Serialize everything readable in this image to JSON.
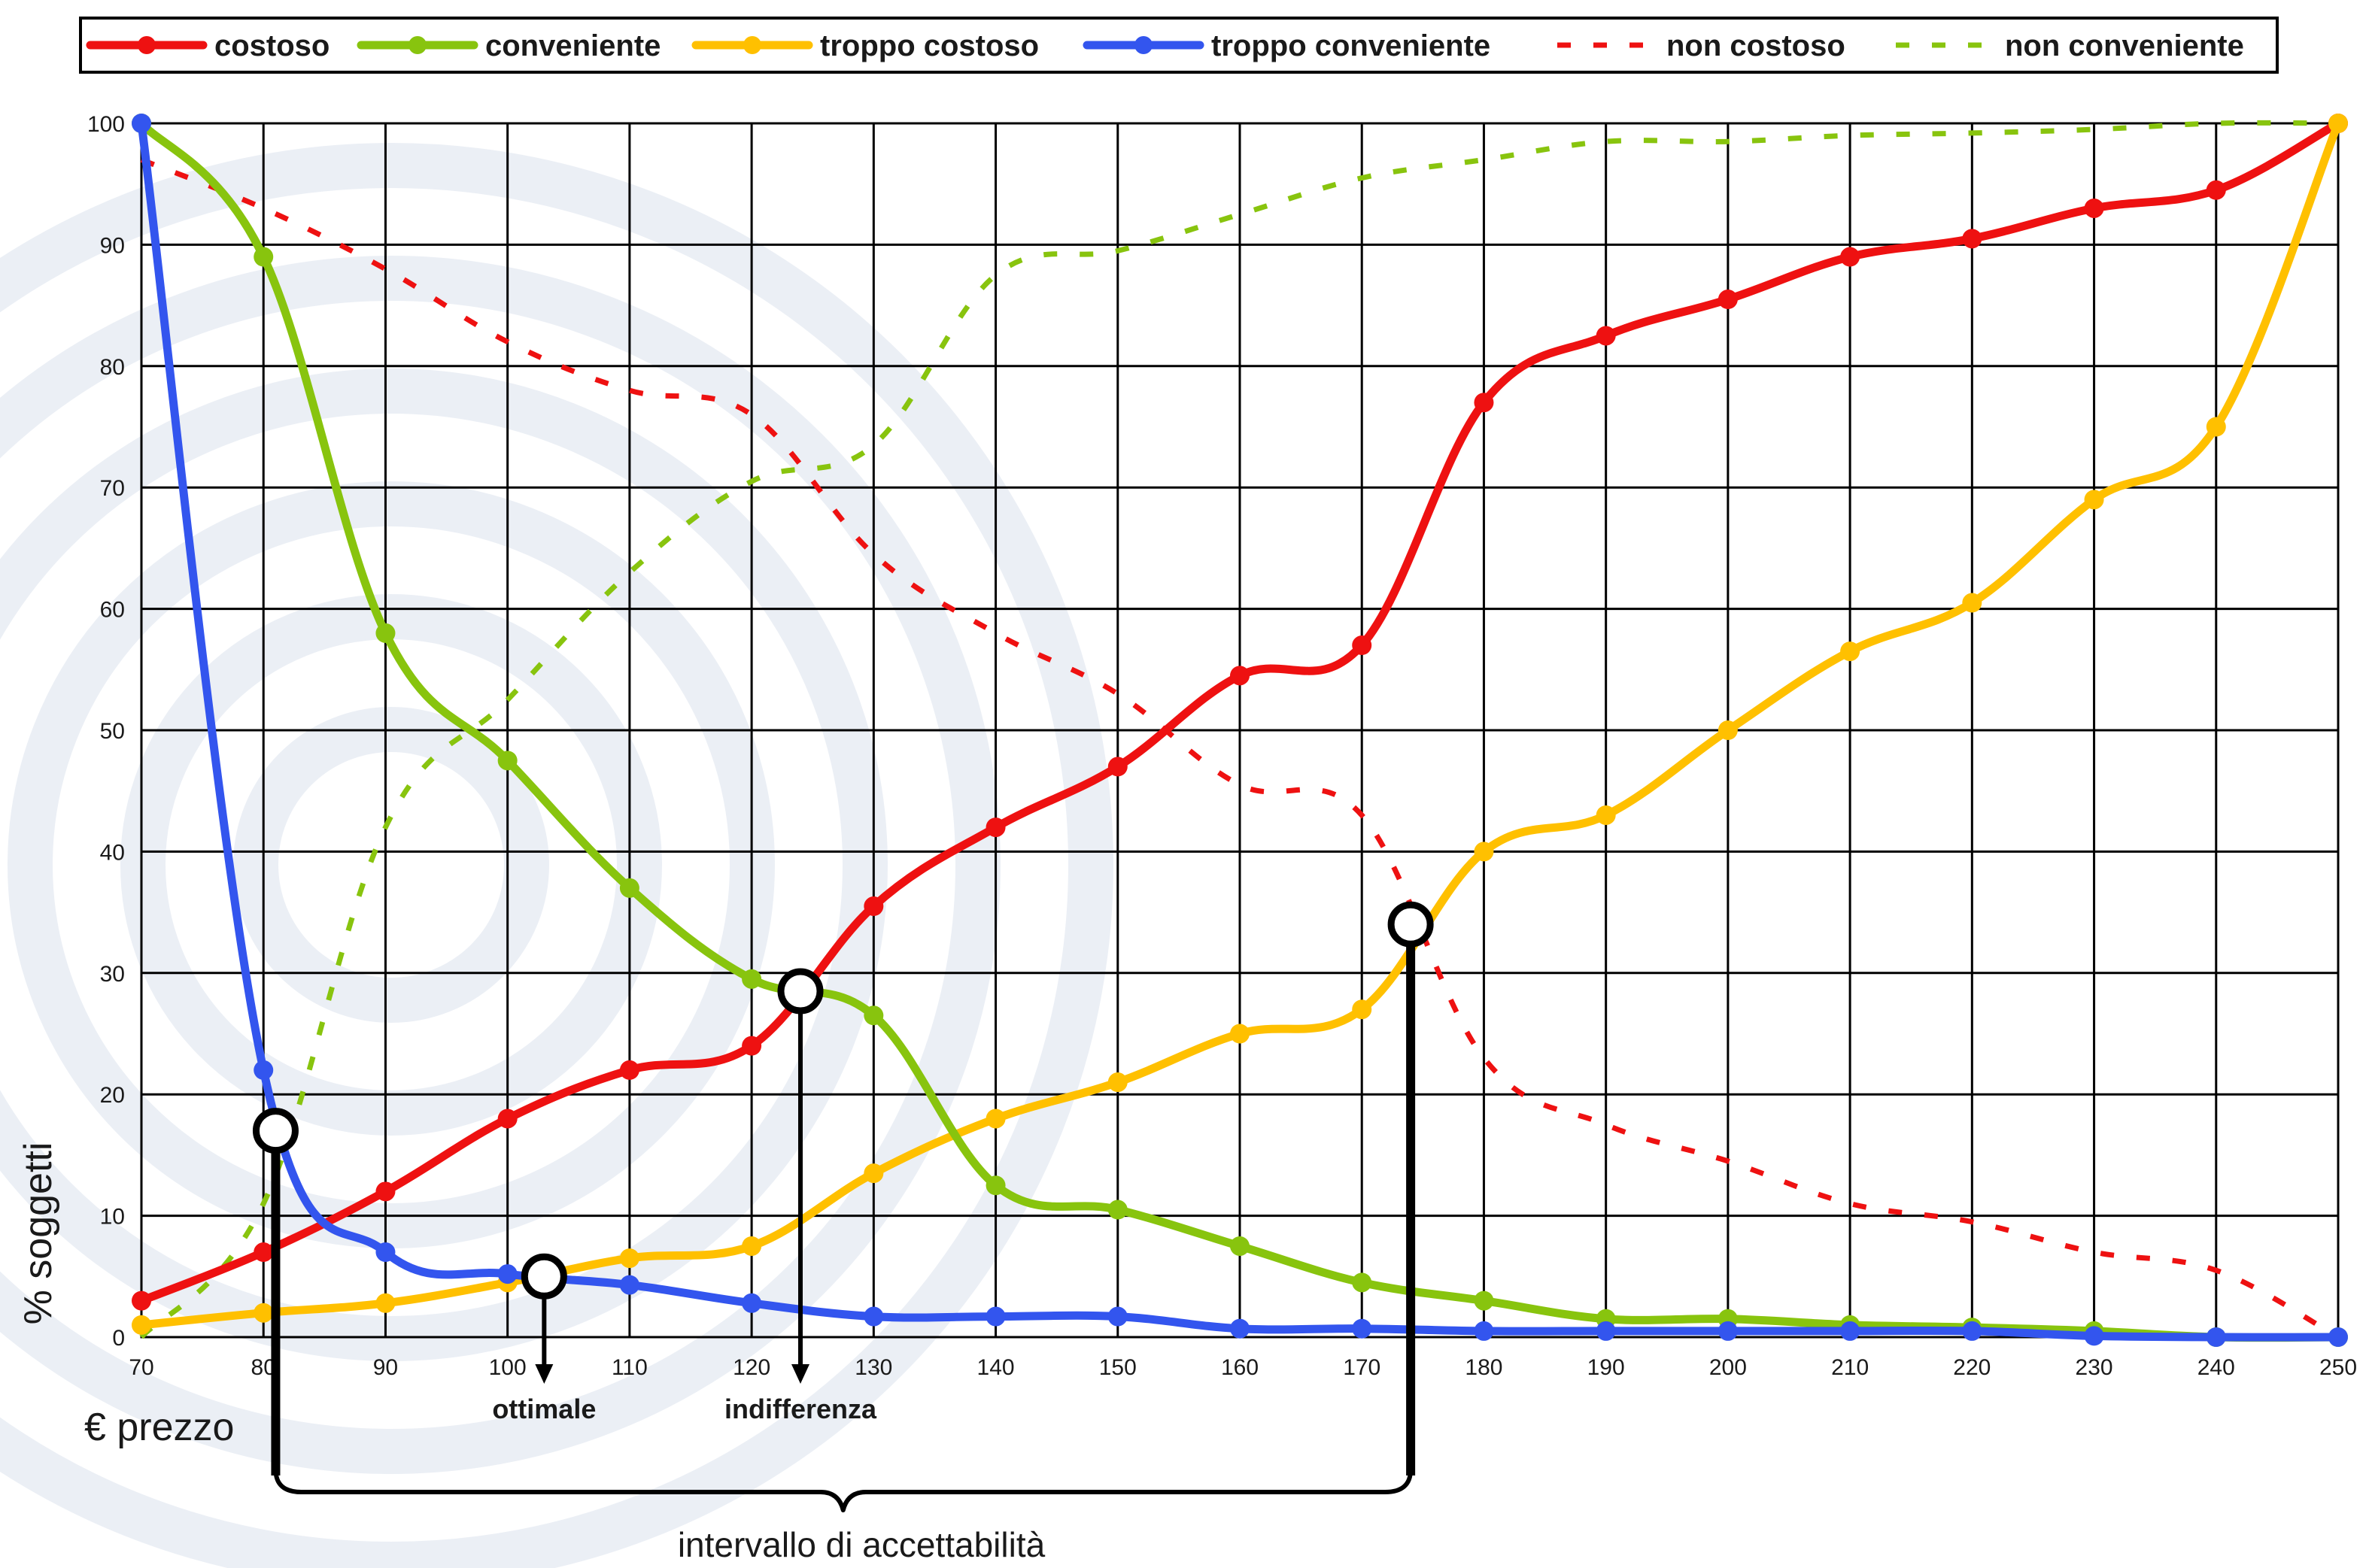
{
  "chart_data": {
    "type": "line",
    "xlabel": "€ prezzo",
    "ylabel": "% soggetti",
    "x": [
      70,
      80,
      90,
      100,
      110,
      120,
      130,
      140,
      150,
      160,
      170,
      180,
      190,
      200,
      210,
      220,
      230,
      240,
      250
    ],
    "xlim": [
      70,
      250
    ],
    "ylim": [
      0,
      100
    ],
    "xticks": [
      70,
      80,
      90,
      100,
      110,
      120,
      130,
      140,
      150,
      160,
      170,
      180,
      190,
      200,
      210,
      220,
      230,
      240,
      250
    ],
    "yticks": [
      0,
      10,
      20,
      30,
      40,
      50,
      60,
      70,
      80,
      90,
      100
    ],
    "grid": true,
    "legend_position": "top",
    "series": [
      {
        "name": "costoso",
        "color": "#ee1111",
        "style": "solid",
        "markers": true,
        "values": [
          3,
          7,
          12,
          18,
          22,
          24,
          35.5,
          42,
          47,
          54.5,
          57,
          77,
          82.5,
          85.5,
          89,
          90.5,
          93,
          94.5,
          100
        ]
      },
      {
        "name": "conveniente",
        "color": "#88c40e",
        "style": "solid",
        "markers": true,
        "values": [
          100,
          89,
          58,
          47.5,
          37,
          29.5,
          26.5,
          12.5,
          10.5,
          7.5,
          4.5,
          3,
          1.5,
          1.5,
          1,
          0.8,
          0.5,
          0,
          0
        ]
      },
      {
        "name": "troppo costoso",
        "color": "#ffc000",
        "style": "solid",
        "markers": true,
        "values": [
          1,
          2,
          2.8,
          4.5,
          6.5,
          7.5,
          13.5,
          18,
          21,
          25,
          27,
          40,
          43,
          50,
          56.5,
          60.5,
          69,
          75,
          100
        ]
      },
      {
        "name": "troppo conveniente",
        "color": "#3355ee",
        "style": "solid",
        "markers": true,
        "values": [
          100,
          22,
          7,
          5.2,
          4.3,
          2.8,
          1.7,
          1.7,
          1.7,
          0.7,
          0.7,
          0.5,
          0.5,
          0.5,
          0.5,
          0.5,
          0.1,
          0,
          0
        ]
      },
      {
        "name": "non costoso",
        "color": "#ee1111",
        "style": "dashed",
        "markers": false,
        "values": [
          97,
          93,
          88,
          82,
          78,
          76,
          64.5,
          58,
          53,
          45.5,
          43,
          23,
          17.5,
          14.5,
          11,
          9.5,
          7,
          5.5,
          0
        ]
      },
      {
        "name": "non conveniente",
        "color": "#88c40e",
        "style": "dashed",
        "markers": false,
        "values": [
          0,
          11,
          42,
          52.5,
          63,
          70.5,
          73.5,
          87.5,
          89.5,
          92.5,
          95.5,
          97,
          98.5,
          98.5,
          99,
          99.2,
          99.5,
          100,
          100
        ]
      }
    ],
    "points": [
      {
        "x": 81,
        "y": 17
      },
      {
        "x": 103,
        "y": 5
      },
      {
        "x": 124,
        "y": 28.5
      },
      {
        "x": 174,
        "y": 34
      }
    ],
    "annotations": [
      {
        "text": "ottimale",
        "x": 103
      },
      {
        "text": "indifferenza",
        "x": 124
      }
    ],
    "range_label": "intervallo di accettabilità",
    "range": [
      81,
      174
    ]
  }
}
